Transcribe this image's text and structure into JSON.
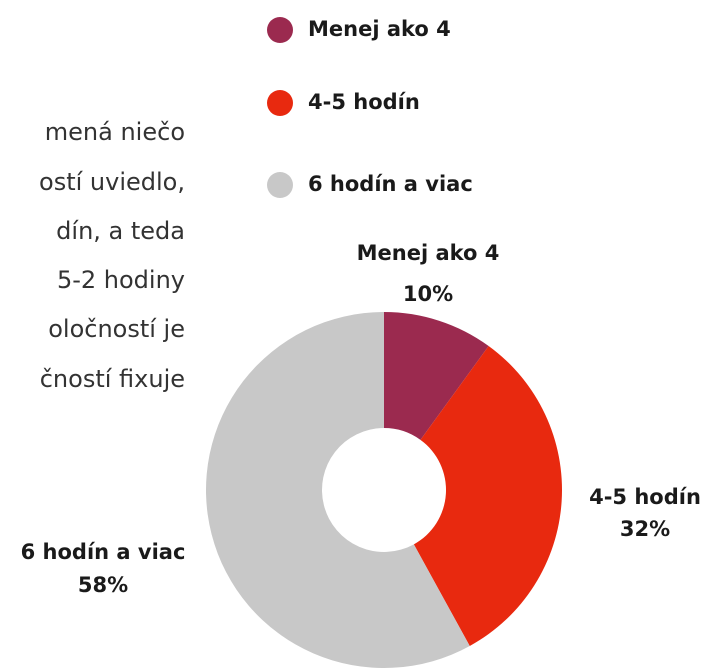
{
  "paragraph_lines": [
    "mená niečo",
    "ostí uviedlo,",
    "dín, a teda",
    "5-2 hodiny",
    "oločností je",
    "čností fixuje"
  ],
  "chart_data": {
    "type": "donut",
    "categories": [
      "Menej ako 4",
      "4-5 hodín",
      "6 hodín a viac"
    ],
    "values": [
      10,
      32,
      58
    ],
    "value_labels": [
      "10%",
      "32%",
      "58%"
    ],
    "colors": [
      "#9b2a4f",
      "#e8290f",
      "#c8c8c8"
    ],
    "legend": "top"
  }
}
